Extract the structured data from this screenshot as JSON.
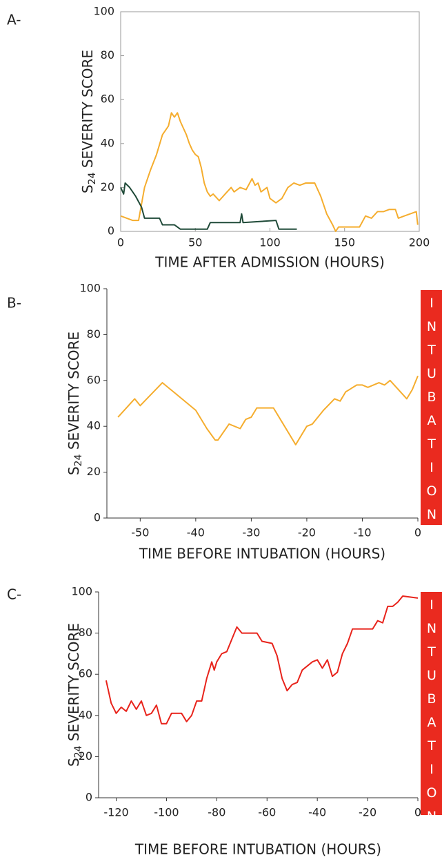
{
  "chart_data": [
    {
      "type": "line",
      "panel_label": "A-",
      "ylabel": [
        "S",
        "24",
        " SEVERITY SCORE"
      ],
      "xlabel": "TIME AFTER ADMISSION (HOURS)",
      "xlim": [
        0,
        200
      ],
      "xticks": [
        0,
        50,
        100,
        150,
        200
      ],
      "ylim": [
        0,
        100
      ],
      "yticks": [
        0,
        20,
        40,
        60,
        80,
        100
      ],
      "box": true,
      "series": [
        {
          "color": "#f5ad2e",
          "x": [
            0,
            8,
            12,
            16,
            20,
            24,
            28,
            32,
            34,
            36,
            38,
            40,
            42,
            44,
            46,
            48,
            50,
            52,
            54,
            56,
            58,
            60,
            62,
            66,
            70,
            74,
            76,
            80,
            84,
            88,
            90,
            92,
            94,
            98,
            100,
            104,
            108,
            112,
            116,
            120,
            124,
            130,
            134,
            138,
            142,
            144,
            146,
            160,
            164,
            168,
            172,
            176,
            180,
            184,
            186,
            190,
            198,
            199
          ],
          "values": [
            7,
            5,
            5,
            20,
            28,
            35,
            44,
            48,
            54,
            52,
            54,
            50,
            47,
            44,
            40,
            37,
            35,
            34,
            29,
            22,
            18,
            16,
            17,
            14,
            17,
            20,
            18,
            20,
            19,
            24,
            21,
            22,
            18,
            20,
            15,
            13,
            15,
            20,
            22,
            21,
            22,
            22,
            16,
            8,
            3,
            0,
            2,
            2,
            7,
            6,
            9,
            9,
            10,
            10,
            6,
            7,
            9,
            3
          ]
        },
        {
          "color": "#1f4a38",
          "x": [
            0,
            2,
            3,
            6,
            10,
            14,
            16,
            26,
            28,
            36,
            40,
            44,
            58,
            60,
            80,
            81,
            82,
            104,
            106,
            118
          ],
          "values": [
            20,
            17,
            22,
            20,
            16,
            11,
            6,
            6,
            3,
            3,
            1,
            1,
            1,
            4,
            4,
            8,
            4,
            5,
            1,
            1
          ]
        }
      ]
    },
    {
      "type": "line",
      "panel_label": "B-",
      "ylabel": [
        "S",
        "24",
        " SEVERITY SCORE"
      ],
      "xlabel": "TIME BEFORE INTUBATION (HOURS)",
      "annotation": "INTUBATION",
      "xlim": [
        -56,
        0
      ],
      "xticks": [
        -50,
        -40,
        -30,
        -20,
        -10,
        0
      ],
      "ylim": [
        0,
        100
      ],
      "yticks": [
        0,
        20,
        40,
        60,
        80,
        100
      ],
      "box": false,
      "series": [
        {
          "color": "#f5ad2e",
          "x": [
            -54,
            -51,
            -50,
            -46,
            -43,
            -40,
            -38,
            -36.5,
            -36,
            -34,
            -32,
            -31,
            -30,
            -29,
            -26,
            -24,
            -22,
            -20,
            -19,
            -17,
            -15,
            -14,
            -13,
            -11,
            -10,
            -9,
            -7,
            -6,
            -5,
            -2,
            -1,
            0
          ],
          "values": [
            44,
            52,
            49,
            59,
            53,
            47,
            39,
            34,
            34,
            41,
            39,
            43,
            44,
            48,
            48,
            40,
            32,
            40,
            41,
            47,
            52,
            51,
            55,
            58,
            58,
            57,
            59,
            58,
            60,
            52,
            56,
            62
          ]
        }
      ]
    },
    {
      "type": "line",
      "panel_label": "C-",
      "ylabel": [
        "S",
        "24",
        " SEVERITY SCORE"
      ],
      "xlabel": "TIME BEFORE INTUBATION (HOURS)",
      "annotation": "INTUBATION",
      "xlim": [
        -127,
        0
      ],
      "xticks": [
        -120,
        -100,
        -80,
        -60,
        -40,
        -20,
        0
      ],
      "ylim": [
        0,
        100
      ],
      "yticks": [
        0,
        20,
        40,
        60,
        80,
        100
      ],
      "box": false,
      "series": [
        {
          "color": "#e8231b",
          "x": [
            -124,
            -122,
            -120,
            -118,
            -116,
            -114,
            -112,
            -110,
            -108,
            -106,
            -104,
            -102,
            -100,
            -98,
            -94,
            -92,
            -90,
            -88,
            -86,
            -84,
            -82,
            -81,
            -80,
            -78,
            -76,
            -74,
            -72,
            -70,
            -64,
            -62,
            -58,
            -56,
            -54,
            -52,
            -50,
            -48,
            -46,
            -42,
            -40,
            -38,
            -36,
            -34,
            -32,
            -30,
            -28,
            -26,
            -18,
            -16,
            -14,
            -12,
            -10,
            -8,
            -6,
            0
          ],
          "values": [
            57,
            46,
            41,
            44,
            42,
            47,
            43,
            47,
            40,
            41,
            45,
            36,
            36,
            41,
            41,
            37,
            40,
            47,
            47,
            58,
            66,
            62,
            66,
            70,
            71,
            77,
            83,
            80,
            80,
            76,
            75,
            69,
            58,
            52,
            55,
            56,
            62,
            66,
            67,
            63,
            67,
            59,
            61,
            70,
            75,
            82,
            82,
            86,
            85,
            93,
            93,
            95,
            98,
            97
          ]
        }
      ]
    }
  ]
}
